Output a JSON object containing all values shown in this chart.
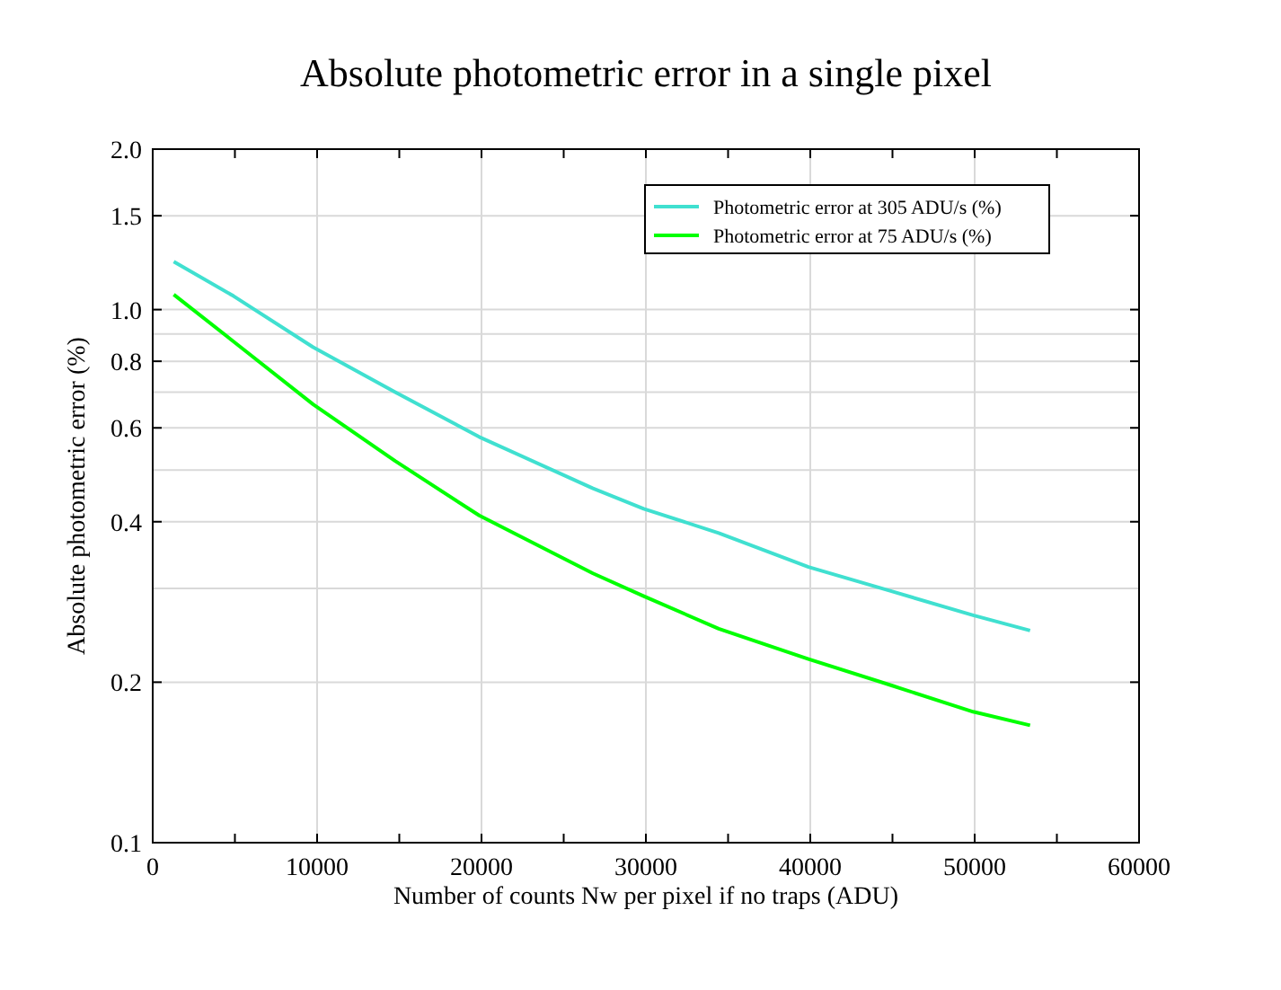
{
  "chart_data": {
    "type": "line",
    "title": "Absolute photometric error in a single pixel",
    "xlabel": "Number of counts Nw per pixel if no traps (ADU)",
    "ylabel": "Absolute photometric error (%)",
    "log": "y",
    "grid": true,
    "legend": "top right",
    "marker": "none",
    "line_style": "solid",
    "xlim": [
      0,
      60000
    ],
    "xticks": [
      0,
      {
        "value": 5000,
        "label": null
      },
      10000,
      {
        "value": 15000,
        "label": null
      },
      20000,
      {
        "value": 25000,
        "label": null
      },
      30000,
      {
        "value": 35000,
        "label": null
      },
      40000,
      {
        "value": 45000,
        "label": null
      },
      50000,
      {
        "value": 55000,
        "label": null
      },
      60000
    ],
    "ylim": [
      0.1,
      2.0
    ],
    "yticks": [
      {
        "value": 0.1,
        "label": "0.1"
      },
      {
        "value": 0.2,
        "label": "0.2"
      },
      {
        "value": 0.3,
        "label": null
      },
      {
        "value": 0.4,
        "label": "0.4"
      },
      {
        "value": 0.5,
        "label": null
      },
      {
        "value": 0.6,
        "label": "0.6"
      },
      {
        "value": 0.7,
        "label": null
      },
      {
        "value": 0.8,
        "label": "0.8"
      },
      {
        "value": 0.9,
        "label": null
      },
      {
        "value": 1.0,
        "label": "1.0"
      },
      {
        "value": 1.5,
        "label": "1.5"
      },
      {
        "value": 2.0,
        "label": "2.0"
      }
    ],
    "x": [
      1280,
      4920,
      9760,
      14750,
      19860,
      26780,
      29870,
      34430,
      39890,
      44990,
      49910,
      53370
    ],
    "series": [
      {
        "name": "Photometric error at 305 ADU/s (%)",
        "color": "#40e0d0",
        "values": [
          1.23,
          1.06,
          0.85,
          0.7,
          0.577,
          0.462,
          0.423,
          0.381,
          0.329,
          0.296,
          0.267,
          0.25
        ]
      },
      {
        "name": "Photometric error at 75 ADU/s (%)",
        "color": "#00ff00",
        "values": [
          1.067,
          0.871,
          0.664,
          0.52,
          0.411,
          0.32,
          0.29,
          0.252,
          0.221,
          0.197,
          0.176,
          0.166
        ]
      }
    ]
  }
}
